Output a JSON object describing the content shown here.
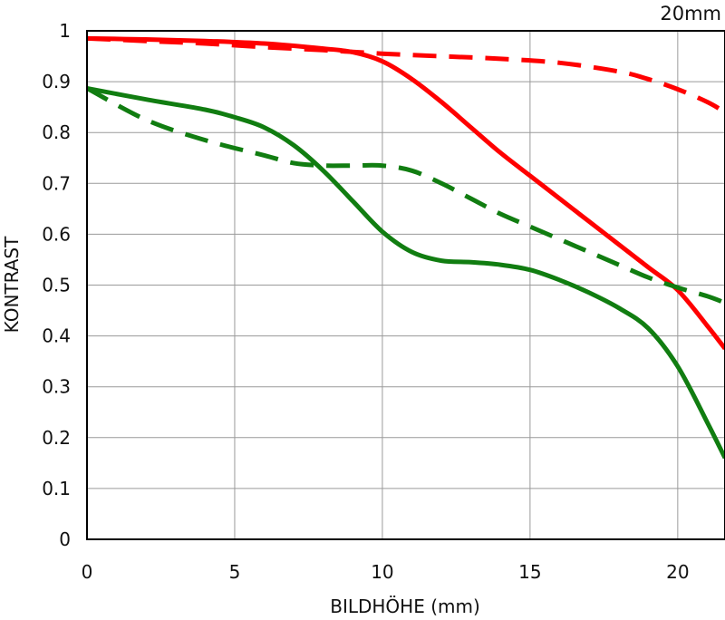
{
  "chart_data": {
    "type": "line",
    "title": "20mm",
    "xlabel": "BILDHÖHE (mm)",
    "ylabel": "KONTRAST",
    "xlim": [
      0,
      21.6
    ],
    "ylim": [
      0,
      1
    ],
    "grid": true,
    "x_ticks": [
      0,
      5,
      10,
      15,
      20
    ],
    "y_ticks": [
      0,
      0.1,
      0.2,
      0.3,
      0.4,
      0.5,
      0.6,
      0.7,
      0.8,
      0.9,
      1
    ],
    "y_tick_labels": [
      "0",
      "0.1",
      "0.2",
      "0.3",
      "0.4",
      "0.5",
      "0.6",
      "0.7",
      "0.8",
      "0.9",
      "1"
    ],
    "x_tick_labels": [
      "0",
      "5",
      "10",
      "15",
      "20"
    ],
    "series": [
      {
        "color": "#ff0000",
        "dash": "solid",
        "points": [
          [
            0,
            0.985
          ],
          [
            2,
            0.983
          ],
          [
            4,
            0.98
          ],
          [
            6,
            0.975
          ],
          [
            8,
            0.965
          ],
          [
            9,
            0.958
          ],
          [
            10,
            0.94
          ],
          [
            11,
            0.905
          ],
          [
            12,
            0.86
          ],
          [
            13,
            0.81
          ],
          [
            14,
            0.76
          ],
          [
            15,
            0.715
          ],
          [
            16,
            0.67
          ],
          [
            17,
            0.625
          ],
          [
            18,
            0.58
          ],
          [
            19,
            0.535
          ],
          [
            20,
            0.49
          ],
          [
            21,
            0.42
          ],
          [
            21.6,
            0.375
          ]
        ]
      },
      {
        "color": "#ff0000",
        "dash": "dashed",
        "points": [
          [
            0,
            0.985
          ],
          [
            2,
            0.98
          ],
          [
            4,
            0.975
          ],
          [
            6,
            0.968
          ],
          [
            8,
            0.962
          ],
          [
            10,
            0.955
          ],
          [
            12,
            0.95
          ],
          [
            14,
            0.945
          ],
          [
            16,
            0.937
          ],
          [
            18,
            0.92
          ],
          [
            19,
            0.905
          ],
          [
            20,
            0.885
          ],
          [
            21,
            0.86
          ],
          [
            21.6,
            0.84
          ]
        ]
      },
      {
        "color": "#117d11",
        "dash": "solid",
        "points": [
          [
            0,
            0.887
          ],
          [
            2,
            0.865
          ],
          [
            4,
            0.845
          ],
          [
            5,
            0.83
          ],
          [
            6,
            0.81
          ],
          [
            7,
            0.775
          ],
          [
            8,
            0.725
          ],
          [
            9,
            0.665
          ],
          [
            10,
            0.605
          ],
          [
            11,
            0.565
          ],
          [
            12,
            0.548
          ],
          [
            13,
            0.545
          ],
          [
            14,
            0.54
          ],
          [
            15,
            0.53
          ],
          [
            16,
            0.51
          ],
          [
            17,
            0.485
          ],
          [
            18,
            0.455
          ],
          [
            19,
            0.415
          ],
          [
            20,
            0.34
          ],
          [
            21,
            0.23
          ],
          [
            21.6,
            0.16
          ]
        ]
      },
      {
        "color": "#117d11",
        "dash": "dashed",
        "points": [
          [
            0,
            0.887
          ],
          [
            2,
            0.825
          ],
          [
            4,
            0.785
          ],
          [
            6,
            0.755
          ],
          [
            7,
            0.74
          ],
          [
            8,
            0.735
          ],
          [
            9,
            0.735
          ],
          [
            10,
            0.735
          ],
          [
            11,
            0.725
          ],
          [
            12,
            0.7
          ],
          [
            13,
            0.67
          ],
          [
            14,
            0.64
          ],
          [
            15,
            0.615
          ],
          [
            16,
            0.59
          ],
          [
            17,
            0.565
          ],
          [
            18,
            0.54
          ],
          [
            19,
            0.515
          ],
          [
            20,
            0.495
          ],
          [
            21,
            0.478
          ],
          [
            21.6,
            0.465
          ]
        ]
      }
    ]
  }
}
